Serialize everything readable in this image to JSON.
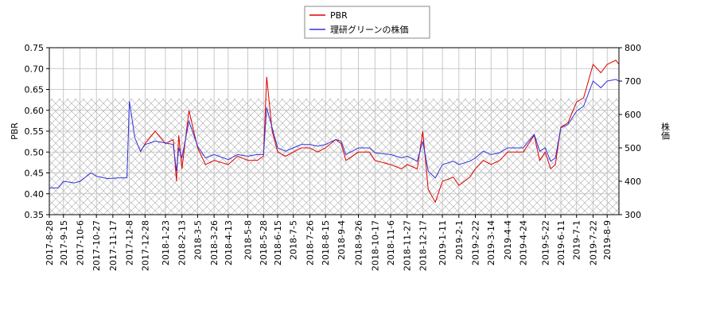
{
  "chart_data": {
    "type": "line",
    "x": [
      "2017-8-28",
      "2017-9-8",
      "2017-9-15",
      "2017-9-29",
      "2017-10-6",
      "2017-10-20",
      "2017-10-27",
      "2017-11-10",
      "2017-11-24",
      "2017-12-5",
      "2017-12-8",
      "2017-12-15",
      "2017-12-22",
      "2017-12-28",
      "2018-1-10",
      "2018-1-23",
      "2018-2-2",
      "2018-2-6",
      "2018-2-9",
      "2018-2-13",
      "2018-2-22",
      "2018-3-5",
      "2018-3-15",
      "2018-3-26",
      "2018-4-13",
      "2018-4-25",
      "2018-5-8",
      "2018-5-20",
      "2018-5-28",
      "2018-6-1",
      "2018-6-8",
      "2018-6-15",
      "2018-6-25",
      "2018-7-5",
      "2018-7-15",
      "2018-7-26",
      "2018-8-5",
      "2018-8-15",
      "2018-8-28",
      "2018-9-4",
      "2018-9-10",
      "2018-9-26",
      "2018-10-10",
      "2018-10-17",
      "2018-11-6",
      "2018-11-20",
      "2018-11-27",
      "2018-12-10",
      "2018-12-17",
      "2018-12-24",
      "2019-1-2",
      "2019-1-11",
      "2019-1-25",
      "2019-2-1",
      "2019-2-15",
      "2019-2-22",
      "2019-3-4",
      "2019-3-14",
      "2019-3-25",
      "2019-4-4",
      "2019-4-24",
      "2019-5-8",
      "2019-5-15",
      "2019-5-22",
      "2019-5-29",
      "2019-6-4",
      "2019-6-11",
      "2019-6-20",
      "2019-7-1",
      "2019-7-10",
      "2019-7-22",
      "2019-8-1",
      "2019-8-9",
      "2019-8-20",
      "2019-8-24"
    ],
    "series": [
      {
        "name": "PBR",
        "color": "#dd0000",
        "axis": "y",
        "values": [
          null,
          null,
          null,
          null,
          null,
          null,
          null,
          null,
          null,
          null,
          null,
          null,
          0.5,
          0.52,
          0.55,
          0.52,
          0.53,
          0.43,
          0.54,
          0.46,
          0.6,
          0.51,
          0.47,
          0.48,
          0.47,
          0.49,
          0.48,
          0.48,
          0.49,
          0.68,
          0.55,
          0.5,
          0.49,
          0.5,
          0.51,
          0.51,
          0.5,
          0.51,
          0.53,
          0.52,
          0.48,
          0.5,
          0.5,
          0.48,
          0.47,
          0.46,
          0.47,
          0.46,
          0.55,
          0.41,
          0.38,
          0.43,
          0.44,
          0.42,
          0.44,
          0.46,
          0.48,
          0.47,
          0.48,
          0.5,
          0.5,
          0.54,
          0.48,
          0.5,
          0.46,
          0.47,
          0.56,
          0.57,
          0.62,
          0.63,
          0.71,
          0.69,
          0.71,
          0.72,
          0.71
        ]
      },
      {
        "name": "理研グリーンの株価",
        "color": "#3333dd",
        "axis": "y2",
        "values": [
          380,
          380,
          400,
          395,
          400,
          425,
          415,
          408,
          410,
          410,
          640,
          530,
          490,
          510,
          520,
          515,
          510,
          430,
          500,
          470,
          580,
          505,
          470,
          480,
          465,
          480,
          475,
          480,
          480,
          620,
          560,
          500,
          490,
          500,
          510,
          510,
          505,
          510,
          525,
          520,
          480,
          500,
          500,
          485,
          480,
          470,
          475,
          460,
          520,
          430,
          410,
          450,
          460,
          450,
          460,
          470,
          490,
          480,
          485,
          500,
          500,
          540,
          490,
          500,
          460,
          470,
          560,
          570,
          610,
          625,
          700,
          680,
          700,
          705,
          700
        ]
      }
    ],
    "xlim": [
      "2017-8-28",
      "2019-8-24"
    ],
    "xticks": [
      "2017-8-28",
      "2017-9-15",
      "2017-10-6",
      "2017-10-27",
      "2017-11-17",
      "2017-12-8",
      "2017-12-28",
      "2018-1-23",
      "2018-2-13",
      "2018-3-5",
      "2018-3-26",
      "2018-4-13",
      "2018-5-8",
      "2018-5-28",
      "2018-6-15",
      "2018-7-5",
      "2018-7-26",
      "2018-8-15",
      "2018-9-4",
      "2018-9-26",
      "2018-10-17",
      "2018-11-6",
      "2018-11-27",
      "2018-12-17",
      "2019-1-11",
      "2019-2-1",
      "2019-2-22",
      "2019-3-14",
      "2019-4-4",
      "2019-4-24",
      "2019-5-22",
      "2019-6-11",
      "2019-7-1",
      "2019-7-22",
      "2019-8-9"
    ],
    "ylim": [
      0.35,
      0.75
    ],
    "yticks": [
      0.35,
      {
        "value": 0.4,
        "label": "0.40"
      },
      0.45,
      {
        "value": 0.5,
        "label": "0.50"
      },
      0.55,
      {
        "value": 0.6,
        "label": "0.60"
      },
      0.65,
      {
        "value": 0.7,
        "label": "0.70"
      },
      0.75
    ],
    "y2lim": [
      300,
      800
    ],
    "y2ticks": [
      300,
      400,
      500,
      600,
      700,
      800
    ],
    "ylabel": "PBR",
    "y2label": "株価",
    "grid": true,
    "legend": "top"
  }
}
